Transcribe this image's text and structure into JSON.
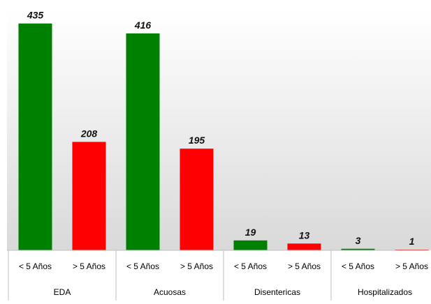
{
  "chart_data": {
    "type": "bar",
    "groups": [
      "EDA",
      "Acuosas",
      "Disentericas",
      "Hospitalizados"
    ],
    "categories": [
      "< 5 Años",
      "> 5 Años",
      "< 5 Años",
      "> 5 Años",
      "< 5 Años",
      "> 5 Años",
      "< 5 Años",
      "> 5 Años"
    ],
    "values": [
      435,
      208,
      416,
      195,
      19,
      13,
      3,
      1
    ],
    "value_labels": [
      "435",
      "208",
      "416",
      "195",
      "19",
      "13",
      "3",
      "1"
    ],
    "bar_colors": [
      "#008000",
      "#ff0000",
      "#008000",
      "#ff0000",
      "#008000",
      "#ff0000",
      "#008000",
      "#ff0000"
    ],
    "ylim": [
      0,
      460
    ],
    "title": "",
    "xlabel": "",
    "ylabel": "",
    "grid": false,
    "legend": "none",
    "background_gradient": [
      "#ffffff",
      "#d9d9d9"
    ]
  }
}
